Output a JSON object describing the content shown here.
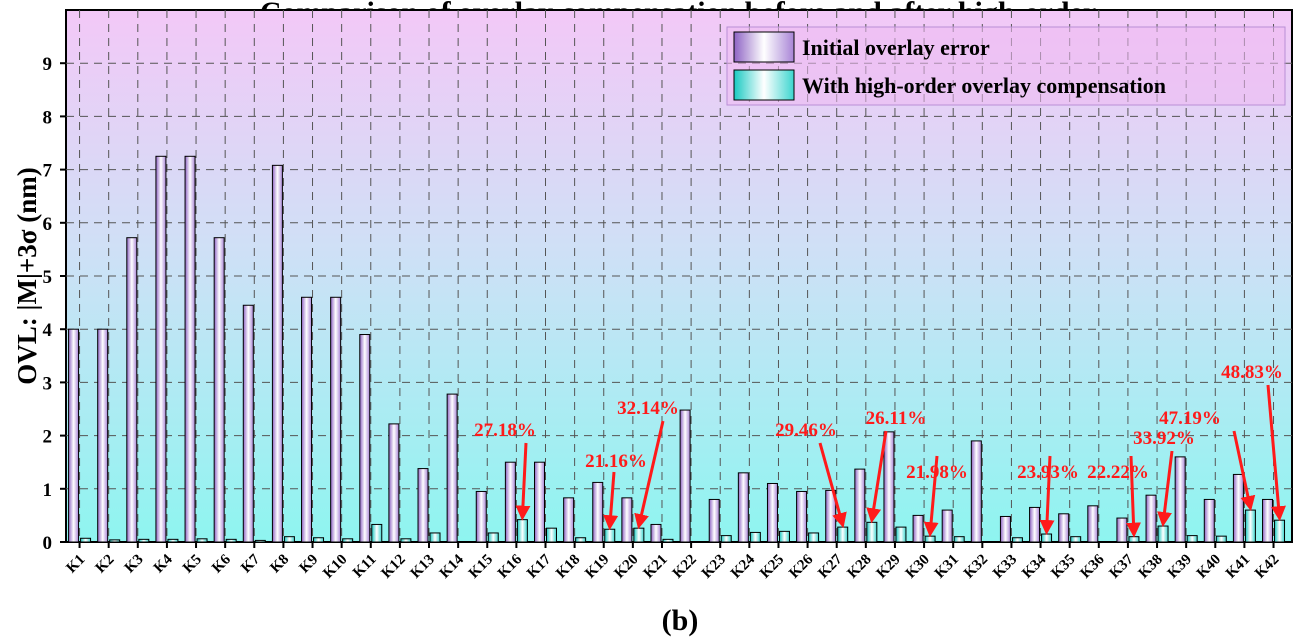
{
  "chart_data": {
    "type": "bar",
    "title": "Comparison of overlay compensation before and after high-order",
    "subtitle": "(b)",
    "xlabel": "",
    "ylabel": "OVL: |M|+3σ (nm)",
    "ylim": [
      0,
      10
    ],
    "yticks": [
      "0",
      "1",
      "2",
      "3",
      "4",
      "5",
      "6",
      "7",
      "8",
      "9"
    ],
    "grid": true,
    "legend_position": "top-right",
    "categories": [
      "K1",
      "K2",
      "K3",
      "K4",
      "K5",
      "K6",
      "K7",
      "K8",
      "K9",
      "K10",
      "K11",
      "K12",
      "K13",
      "K14",
      "K15",
      "K16",
      "K17",
      "K18",
      "K19",
      "K20",
      "K21",
      "K22",
      "K23",
      "K24",
      "K25",
      "K26",
      "K27",
      "K28",
      "K29",
      "K30",
      "K31",
      "K32",
      "K33",
      "K34",
      "K35",
      "K36",
      "K37",
      "K38",
      "K39",
      "K40",
      "K41",
      "K42"
    ],
    "series": [
      {
        "name": "Initial overlay error",
        "color": "#d9b3ec",
        "values": [
          4.0,
          4.0,
          5.72,
          7.25,
          7.25,
          5.72,
          4.45,
          7.08,
          4.6,
          4.6,
          3.9,
          2.22,
          1.38,
          2.78,
          0.95,
          1.5,
          1.5,
          0.83,
          1.12,
          0.83,
          0.33,
          2.48,
          0.8,
          1.3,
          1.1,
          0.95,
          0.97,
          1.37,
          2.07,
          0.5,
          0.6,
          1.9,
          0.48,
          0.65,
          0.53,
          0.68,
          0.45,
          0.88,
          1.6,
          0.8,
          1.27,
          0.8
        ]
      },
      {
        "name": "With high-order overlay compensation",
        "color": "#3fd9d0",
        "values": [
          0.07,
          0.04,
          0.05,
          0.05,
          0.06,
          0.05,
          0.03,
          0.1,
          0.08,
          0.06,
          0.33,
          0.06,
          0.17,
          0.0,
          0.17,
          0.42,
          0.26,
          0.08,
          0.24,
          0.26,
          0.05,
          0.0,
          0.12,
          0.18,
          0.2,
          0.17,
          0.28,
          0.37,
          0.28,
          0.11,
          0.1,
          0.0,
          0.08,
          0.15,
          0.1,
          0.0,
          0.1,
          0.3,
          0.12,
          0.11,
          0.6,
          0.41
        ]
      }
    ],
    "annotations": [
      {
        "text": "27.18%",
        "target": "K16"
      },
      {
        "text": "21.16%",
        "target": "K19"
      },
      {
        "text": "32.14%",
        "target": "K20"
      },
      {
        "text": "29.46%",
        "target": "K27"
      },
      {
        "text": "26.11%",
        "target": "K28"
      },
      {
        "text": "21.98%",
        "target": "K30"
      },
      {
        "text": "23.93%",
        "target": "K34"
      },
      {
        "text": "22.22%",
        "target": "K37"
      },
      {
        "text": "33.92%",
        "target": "K38"
      },
      {
        "text": "47.19%",
        "target": "K41"
      },
      {
        "text": "48.83%",
        "target": "K42"
      }
    ],
    "annotation_color": "#ff1a1a"
  }
}
